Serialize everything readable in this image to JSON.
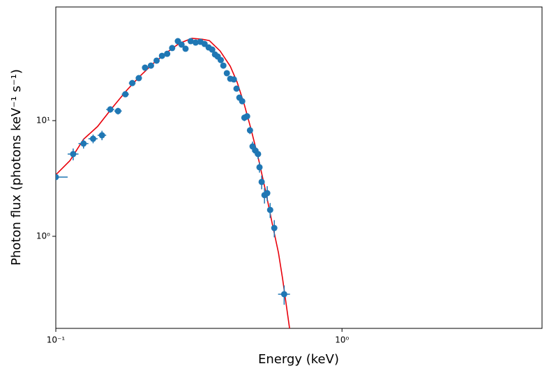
{
  "chart_data": {
    "type": "scatter",
    "xlabel": "Energy (keV)",
    "ylabel": "Photon flux (photons keV⁻¹ s⁻¹)",
    "xscale": "log",
    "yscale": "log",
    "xlim": [
      0.1,
      5
    ],
    "ylim": [
      0.16,
      96
    ],
    "xticks": [
      {
        "value": 0.1,
        "label": "10⁻¹"
      },
      {
        "value": 1,
        "label": "10⁰"
      }
    ],
    "yticks": [
      {
        "value": 1,
        "label": "10⁰"
      },
      {
        "value": 10,
        "label": "10¹"
      }
    ],
    "points": {
      "color": "#1f77b4",
      "x": [
        0.1,
        0.115,
        0.125,
        0.135,
        0.145,
        0.155,
        0.165,
        0.175,
        0.185,
        0.195,
        0.205,
        0.215,
        0.225,
        0.235,
        0.245,
        0.255,
        0.267,
        0.275,
        0.284,
        0.296,
        0.308,
        0.32,
        0.331,
        0.342,
        0.352,
        0.36,
        0.368,
        0.377,
        0.385,
        0.396,
        0.407,
        0.419,
        0.428,
        0.438,
        0.448,
        0.456,
        0.466,
        0.477,
        0.487,
        0.498,
        0.509,
        0.515,
        0.524,
        0.536,
        0.548,
        0.561,
        0.58,
        0.628
      ],
      "y": [
        3.25,
        5.14,
        6.33,
        6.97,
        7.47,
        12.5,
        12.1,
        16.9,
        21.1,
        23.3,
        28.7,
        29.9,
        33.0,
        36.3,
        37.8,
        42.4,
        48.6,
        45.4,
        41.8,
        48.6,
        47.3,
        48.0,
        46.0,
        42.9,
        41.1,
        37.3,
        35.8,
        33.4,
        29.9,
        25.7,
        23.0,
        22.7,
        18.9,
        15.8,
        14.7,
        10.6,
        10.9,
        8.24,
        5.98,
        5.51,
        5.14,
        3.95,
        2.95,
        2.27,
        2.36,
        1.69,
        1.18,
        0.316
      ],
      "xerr": [
        0.01,
        0.005,
        0.005,
        0.005,
        0.005,
        0.005,
        0.005,
        0.005,
        0.005,
        0.005,
        0.005,
        0.005,
        0.005,
        0.005,
        0.005,
        0.005,
        0.005,
        0.005,
        0.005,
        0.005,
        0.005,
        0.005,
        0.005,
        0.005,
        0.005,
        0.005,
        0.005,
        0.005,
        0.005,
        0.005,
        0.005,
        0.005,
        0.005,
        0.005,
        0.005,
        0.005,
        0.005,
        0.005,
        0.005,
        0.005,
        0.005,
        0.005,
        0.005,
        0.005,
        0.005,
        0.005,
        0.005,
        0.03
      ],
      "yerr": [
        0.1,
        0.6,
        0.6,
        0.6,
        0.7,
        0.8,
        0.8,
        0.8,
        0.9,
        1.0,
        1.0,
        1.0,
        1.0,
        1.1,
        1.1,
        1.2,
        1.3,
        1.3,
        1.2,
        1.3,
        1.3,
        1.3,
        1.3,
        1.2,
        1.2,
        1.2,
        1.1,
        1.1,
        1.0,
        1.0,
        0.9,
        0.9,
        0.8,
        0.8,
        0.8,
        0.7,
        0.7,
        0.6,
        0.6,
        0.5,
        0.5,
        0.4,
        0.4,
        0.35,
        0.35,
        0.25,
        0.2,
        0.06
      ]
    },
    "model": {
      "color": "#e8000b",
      "x": [
        0.1,
        0.112,
        0.125,
        0.14,
        0.157,
        0.176,
        0.196,
        0.22,
        0.245,
        0.27,
        0.299,
        0.325,
        0.344,
        0.375,
        0.407,
        0.43,
        0.456,
        0.48,
        0.509,
        0.54,
        0.57,
        0.6,
        0.62,
        0.656
      ],
      "y": [
        3.4,
        4.5,
        6.9,
        8.9,
        12.8,
        18.0,
        24.0,
        31.5,
        39.0,
        46.5,
        51.5,
        50.5,
        49.2,
        40.0,
        29.5,
        21.5,
        13.7,
        8.6,
        4.86,
        2.5,
        1.3,
        0.72,
        0.43,
        0.16
      ]
    }
  }
}
